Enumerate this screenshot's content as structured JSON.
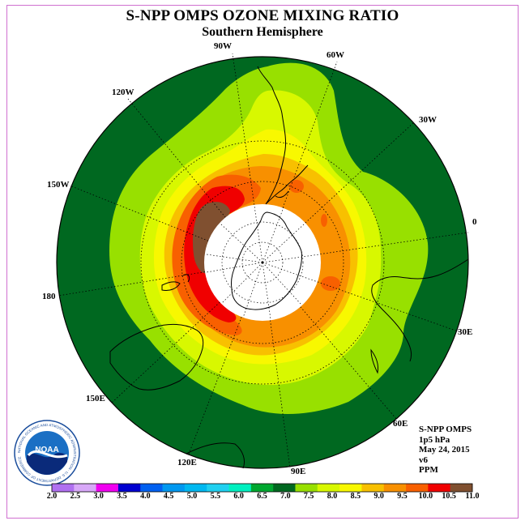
{
  "title": "S-NPP OMPS OZONE MIXING RATIO",
  "subtitle": "Southern Hemisphere",
  "longitude_labels": [
    {
      "text": "90W",
      "name": "lon-label-90w"
    },
    {
      "text": "60W",
      "name": "lon-label-60w"
    },
    {
      "text": "120W",
      "name": "lon-label-120w"
    },
    {
      "text": "30W",
      "name": "lon-label-30w"
    },
    {
      "text": "150W",
      "name": "lon-label-150w"
    },
    {
      "text": "0",
      "name": "lon-label-0"
    },
    {
      "text": "180",
      "name": "lon-label-180"
    },
    {
      "text": "30E",
      "name": "lon-label-30e"
    },
    {
      "text": "150E",
      "name": "lon-label-150e"
    },
    {
      "text": "60E",
      "name": "lon-label-60e"
    },
    {
      "text": "120E",
      "name": "lon-label-120e"
    },
    {
      "text": "90E",
      "name": "lon-label-90e"
    }
  ],
  "info": {
    "instrument": "S-NPP OMPS",
    "level": "1p5 hPa",
    "date": "May 24, 2015",
    "version": "v6",
    "units": "PPM"
  },
  "logo": {
    "text": "NOAA",
    "ring_text": "NATIONAL OCEANIC AND ATMOSPHERIC ADMINISTRATION · U.S. DEPARTMENT OF COMMERCE"
  },
  "colorbar": {
    "ticks": [
      "2.0",
      "2.5",
      "3.0",
      "3.5",
      "4.0",
      "4.5",
      "5.0",
      "5.5",
      "6.0",
      "6.5",
      "7.0",
      "7.5",
      "8.0",
      "8.5",
      "9.0",
      "9.5",
      "10.0",
      "10.5",
      "11.0"
    ],
    "colors": [
      "#b070f0",
      "#d8a8f8",
      "#f000f0",
      "#0000d0",
      "#0060f0",
      "#0098f0",
      "#00b8f0",
      "#20d0f0",
      "#00f0c0",
      "#00a830",
      "#006820",
      "#98e000",
      "#d8f800",
      "#f8f800",
      "#f8c000",
      "#f89000",
      "#f86000",
      "#f00000",
      "#805030"
    ]
  }
}
